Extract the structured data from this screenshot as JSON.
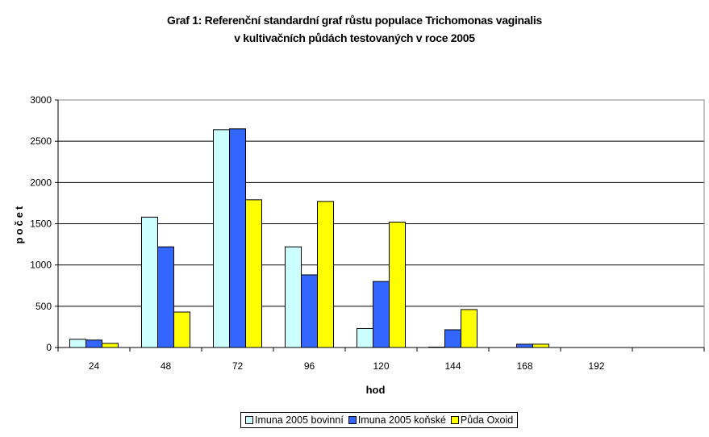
{
  "chart_data": {
    "type": "bar",
    "title_lines": [
      "Graf 1: Referenční standardní graf růstu populace Trichomonas vaginalis",
      "v kultivačních půdách  testovaných v roce 2005"
    ],
    "xlabel": "hod",
    "ylabel": "počet",
    "categories": [
      "24",
      "48",
      "72",
      "96",
      "120",
      "144",
      "168",
      "192",
      ""
    ],
    "ylim": [
      0,
      3000
    ],
    "yticks": [
      0,
      500,
      1000,
      1500,
      2000,
      2500,
      3000
    ],
    "grid": true,
    "legend_position": "bottom",
    "series": [
      {
        "name": "Imuna 2005 bovinní",
        "color": "#CCFFFF",
        "values": [
          100,
          1580,
          2640,
          1220,
          230,
          5,
          0,
          0,
          0
        ]
      },
      {
        "name": "Imuna 2005 koňské",
        "color": "#3366FF",
        "values": [
          90,
          1220,
          2650,
          880,
          800,
          215,
          40,
          0,
          0
        ]
      },
      {
        "name": "Půda Oxoid",
        "color": "#FFFF00",
        "values": [
          50,
          430,
          1790,
          1770,
          1520,
          460,
          40,
          0,
          0
        ]
      }
    ]
  }
}
